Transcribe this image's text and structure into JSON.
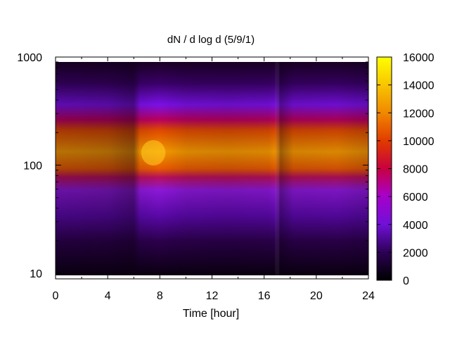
{
  "chart_data": {
    "type": "heatmap",
    "title": "dN / d log d (5/9/1)",
    "xlabel": "Time [hour]",
    "ylabel": "",
    "xlim": [
      0,
      24
    ],
    "ylim": [
      9,
      1000
    ],
    "y_scale": "log",
    "x_ticks": [
      "0",
      "4",
      "8",
      "12",
      "16",
      "20",
      "24"
    ],
    "y_ticks": [
      "10",
      "100",
      "1000"
    ],
    "colorbar": {
      "range": [
        0,
        16000
      ],
      "ticks": [
        "0",
        "2000",
        "4000",
        "6000",
        "8000",
        "10000",
        "12000",
        "14000",
        "16000"
      ],
      "colormap": "gnuplot"
    },
    "grid": false,
    "peak_diameter_approx": 130,
    "intensity_by_hour": {
      "hours": [
        0,
        2,
        4,
        5,
        6,
        7,
        8,
        10,
        12,
        14,
        16,
        17,
        18,
        20,
        22,
        24
      ],
      "peak_values": [
        9500,
        9300,
        9000,
        8200,
        8000,
        13500,
        13500,
        11500,
        11000,
        11200,
        11500,
        9000,
        11000,
        11500,
        11500,
        10500
      ]
    }
  }
}
